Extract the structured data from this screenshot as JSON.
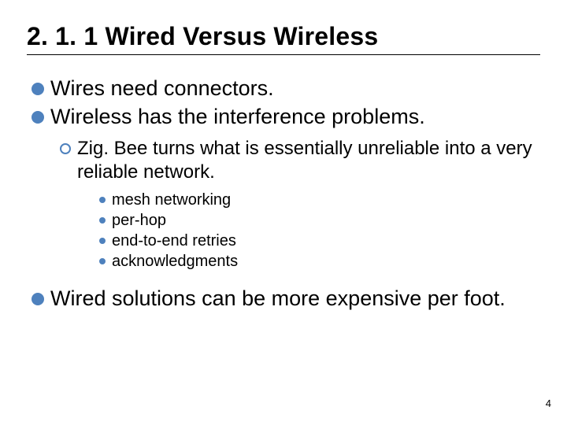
{
  "title": "2. 1. 1 Wired Versus Wireless",
  "colors": {
    "bullet_lvl1": "#4e81bd",
    "ring_lvl2_border": "#4e81bd",
    "bullet_lvl3": "#4e81bd",
    "text": "#000000",
    "rule": "#000000",
    "background": "#ffffff"
  },
  "typography": {
    "title_fontsize": 32,
    "lvl1_fontsize": 27,
    "lvl2_fontsize": 24,
    "lvl3_fontsize": 20,
    "pagenum_fontsize": 13,
    "font_family": "Arial"
  },
  "bullets": {
    "lvl1": [
      "Wires need connectors.",
      "Wireless has the interference problems."
    ],
    "lvl2": [
      "Zig. Bee turns what is essentially unreliable into a very reliable network."
    ],
    "lvl3": [
      "mesh networking",
      "per-hop",
      "end-to-end retries",
      "acknowledgments"
    ],
    "lvl1b": [
      "Wired solutions can be more expensive per foot."
    ]
  },
  "page_number": "4"
}
